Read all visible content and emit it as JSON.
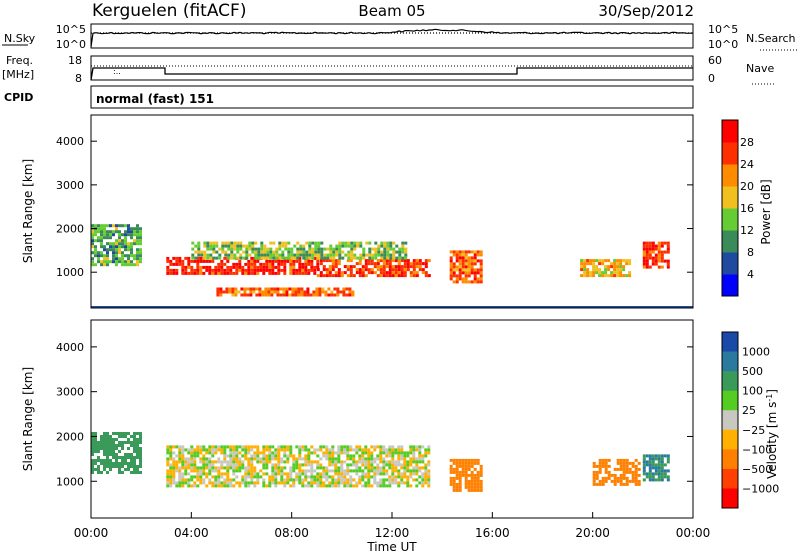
{
  "header": {
    "station": "Kerguelen (fitACF)",
    "beam": "Beam 05",
    "date": "30/Sep/2012"
  },
  "noise_panel": {
    "left_label": "N.Sky",
    "right_label": "N.Search",
    "y_ticks_left": [
      "10^5",
      "10^0"
    ],
    "y_ticks_right": [
      "10^5",
      "10^0"
    ]
  },
  "freq_panel": {
    "left_label_1": "Freq.",
    "left_label_2": "[MHz]",
    "right_label": "Nave",
    "y_ticks_left": [
      "18",
      "8"
    ],
    "y_ticks_right": [
      "60",
      "0"
    ]
  },
  "cpid": {
    "label": "CPID",
    "value": "normal (fast) 151"
  },
  "chart_data": [
    {
      "type": "heatmap",
      "title": "",
      "xlabel": "Time UT",
      "ylabel": "Slant Range [km]",
      "xlim": [
        "00:00",
        "24:00"
      ],
      "ylim": [
        180,
        4600
      ],
      "y_ticks": [
        1000,
        2000,
        3000,
        4000
      ],
      "colorbar": {
        "label": "Power [dB]",
        "ticks": [
          4,
          8,
          12,
          16,
          20,
          24,
          28
        ],
        "colors": [
          "#0000ff",
          "#1f4aa0",
          "#3a8a5a",
          "#66cc33",
          "#f0c020",
          "#ff8c00",
          "#ff3000",
          "#ff0000"
        ]
      },
      "echo_regions": [
        {
          "t0": 0.0,
          "t1": 2.0,
          "r0": 1200,
          "r1": 2100,
          "level": 12
        },
        {
          "t0": 3.0,
          "t1": 9.0,
          "r0": 1000,
          "r1": 1350,
          "level": 28
        },
        {
          "t0": 9.0,
          "t1": 13.5,
          "r0": 950,
          "r1": 1300,
          "level": 26
        },
        {
          "t0": 4.0,
          "t1": 12.5,
          "r0": 1300,
          "r1": 1700,
          "level": 14
        },
        {
          "t0": 5.0,
          "t1": 10.5,
          "r0": 500,
          "r1": 650,
          "level": 24
        },
        {
          "t0": 14.3,
          "t1": 15.5,
          "r0": 800,
          "r1": 1500,
          "level": 24
        },
        {
          "t0": 19.5,
          "t1": 21.5,
          "r0": 900,
          "r1": 1300,
          "level": 20
        },
        {
          "t0": 22.0,
          "t1": 23.0,
          "r0": 1100,
          "r1": 1700,
          "level": 28
        }
      ]
    },
    {
      "type": "heatmap",
      "title": "",
      "xlabel": "Time UT",
      "ylabel": "Slant Range [km]",
      "xlim": [
        "00:00",
        "24:00"
      ],
      "ylim": [
        180,
        4600
      ],
      "y_ticks": [
        1000,
        2000,
        3000,
        4000
      ],
      "x_ticks": [
        "00:00",
        "04:00",
        "08:00",
        "12:00",
        "16:00",
        "20:00",
        "00:00"
      ],
      "colorbar": {
        "label": "Velocity [m s^-1]",
        "ticks": [
          "1000",
          "500",
          "100",
          "25",
          "−25",
          "−100",
          "−500",
          "−1000"
        ],
        "colors": [
          "#1a4aa8",
          "#2a7aa0",
          "#3a9a5a",
          "#55cc22",
          "#c8c8c0",
          "#ffb000",
          "#ff8000",
          "#ff4000",
          "#ff0000"
        ]
      },
      "echo_regions": [
        {
          "t0": 3.0,
          "t1": 13.5,
          "r0": 900,
          "r1": 1800,
          "velocity": 0
        },
        {
          "t0": 0.0,
          "t1": 2.0,
          "r0": 1200,
          "r1": 2100,
          "velocity": 200
        },
        {
          "t0": 14.3,
          "t1": 15.5,
          "r0": 800,
          "r1": 1500,
          "velocity": -300
        },
        {
          "t0": 20.0,
          "t1": 21.8,
          "r0": 900,
          "r1": 1500,
          "velocity": -400
        },
        {
          "t0": 22.0,
          "t1": 23.0,
          "r0": 1000,
          "r1": 1600,
          "velocity": 500
        }
      ]
    }
  ]
}
